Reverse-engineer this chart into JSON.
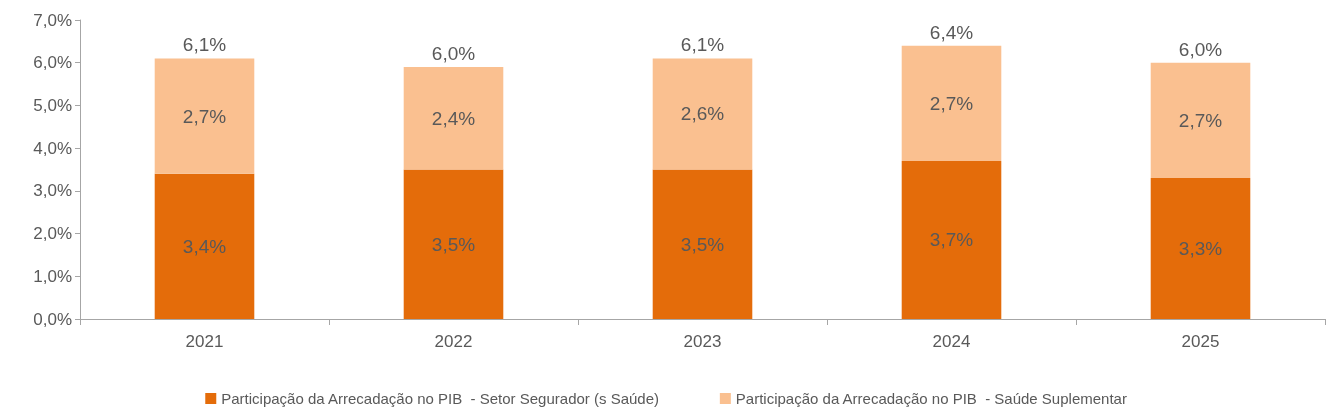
{
  "chart_data": {
    "type": "bar",
    "stacked": true,
    "categories": [
      "2021",
      "2022",
      "2023",
      "2024",
      "2025"
    ],
    "series": [
      {
        "name": "Participação da Arrecadação no PIB  - Setor Segurador (s Saúde)",
        "color": "#e46c0a",
        "values": [
          3.4,
          3.5,
          3.5,
          3.7,
          3.3
        ],
        "value_labels": [
          "3,4%",
          "3,5%",
          "3,5%",
          "3,7%",
          "3,3%"
        ]
      },
      {
        "name": "Participação da Arrecadação no PIB  - Saúde Suplementar",
        "color": "#fac090",
        "values": [
          2.7,
          2.4,
          2.6,
          2.7,
          2.7
        ],
        "value_labels": [
          "2,7%",
          "2,4%",
          "2,6%",
          "2,7%",
          "2,7%"
        ]
      }
    ],
    "totals": [
      "6,1%",
      "6,0%",
      "6,1%",
      "6,4%",
      "6,0%"
    ],
    "ylim": [
      0,
      7
    ],
    "yticks": [
      {
        "value": 0,
        "label": "0,0%"
      },
      {
        "value": 1,
        "label": "1,0%"
      },
      {
        "value": 2,
        "label": "2,0%"
      },
      {
        "value": 3,
        "label": "3,0%"
      },
      {
        "value": 4,
        "label": "4,0%"
      },
      {
        "value": 5,
        "label": "5,0%"
      },
      {
        "value": 6,
        "label": "6,0%"
      },
      {
        "value": 7,
        "label": "7,0%"
      }
    ],
    "grid": false,
    "legend": "bottom"
  }
}
